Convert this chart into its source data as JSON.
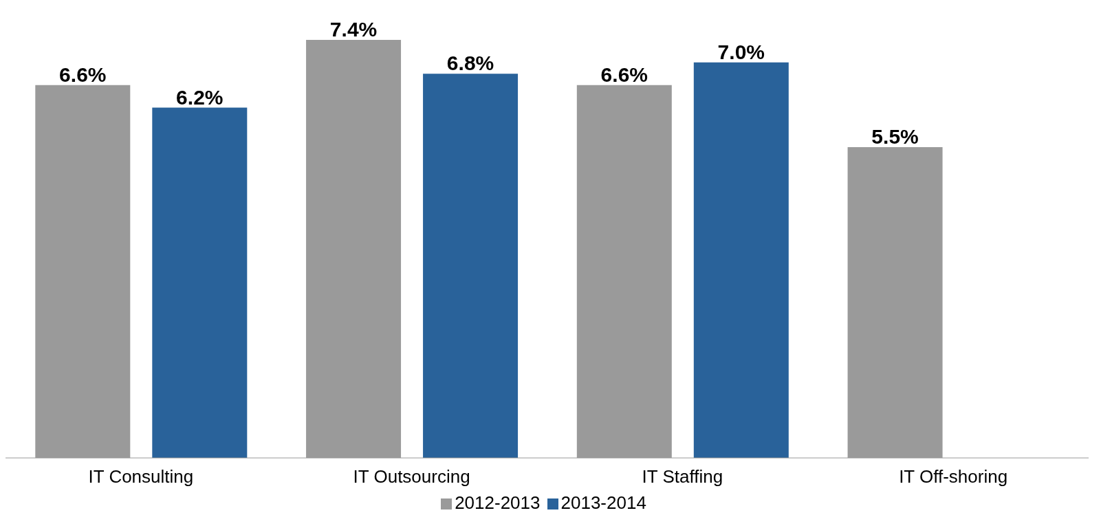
{
  "chart_data": {
    "type": "bar",
    "categories": [
      "IT Consulting",
      "IT Outsourcing",
      "IT Staffing",
      "IT Off-shoring"
    ],
    "series": [
      {
        "name": "2012-2013",
        "color": "#9a9a9a",
        "values": [
          6.6,
          7.4,
          6.6,
          5.5
        ],
        "value_labels": [
          "6.6%",
          "7.4%",
          "6.6%",
          "5.5%"
        ]
      },
      {
        "name": "2013-2014",
        "color": "#29629a",
        "values": [
          6.2,
          6.8,
          7.0,
          null
        ],
        "value_labels": [
          "6.2%",
          "6.8%",
          "7.0%",
          null
        ]
      }
    ],
    "legend": "bottom"
  }
}
